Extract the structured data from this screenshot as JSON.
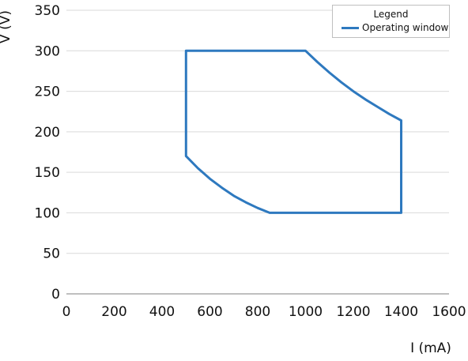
{
  "chart_data": {
    "type": "line",
    "xlabel": "I (mA)",
    "ylabel": "V (V)",
    "xlim": [
      0,
      1600
    ],
    "ylim": [
      0,
      350
    ],
    "x_ticks": [
      "0",
      "200",
      "400",
      "600",
      "800",
      "1000",
      "1200",
      "1400",
      "1600"
    ],
    "y_ticks": [
      "0",
      "50",
      "100",
      "150",
      "200",
      "250",
      "300",
      "350"
    ],
    "grid": "horizontal",
    "legend": {
      "title": "Legend",
      "placement": "top-right"
    },
    "series": [
      {
        "name": "Operating window",
        "color": "#2e79bf",
        "closed": true,
        "x": [
          500,
          1000,
          1050,
          1100,
          1150,
          1200,
          1250,
          1300,
          1350,
          1400,
          1400,
          850,
          800,
          750,
          700,
          650,
          600,
          550,
          500,
          500
        ],
        "y": [
          300,
          300,
          286,
          273,
          261,
          250,
          240,
          231,
          222,
          214,
          100,
          100,
          106,
          113,
          121,
          131,
          142,
          155,
          170,
          300
        ]
      }
    ]
  }
}
